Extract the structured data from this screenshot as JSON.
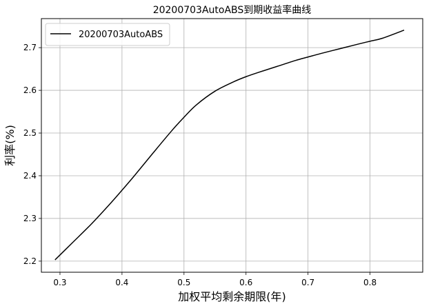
{
  "chart_data": {
    "type": "line",
    "title": "20200703AutoABS到期收益率曲线",
    "xlabel": "加权平均剩余期限(年)",
    "ylabel": "利率(%)",
    "xlim": [
      0.27,
      0.885
    ],
    "ylim": [
      2.174,
      2.768
    ],
    "xticks": [
      0.3,
      0.4,
      0.5,
      0.6,
      0.7,
      0.8
    ],
    "xtick_labels": [
      "0.3",
      "0.4",
      "0.5",
      "0.6",
      "0.7",
      "0.8"
    ],
    "yticks": [
      2.2,
      2.3,
      2.4,
      2.5,
      2.6,
      2.7
    ],
    "ytick_labels": [
      "2.2",
      "2.3",
      "2.4",
      "2.5",
      "2.6",
      "2.7"
    ],
    "grid": true,
    "legend_position": "top-left",
    "series": [
      {
        "name": "20200703AutoABS",
        "color": "#000000",
        "x": [
          0.292,
          0.32,
          0.35,
          0.38,
          0.4,
          0.42,
          0.45,
          0.48,
          0.5,
          0.52,
          0.55,
          0.58,
          0.6,
          0.62,
          0.65,
          0.68,
          0.7,
          0.72,
          0.75,
          0.78,
          0.8,
          0.82,
          0.855
        ],
        "y": [
          2.203,
          2.243,
          2.286,
          2.333,
          2.366,
          2.4,
          2.453,
          2.505,
          2.537,
          2.566,
          2.598,
          2.62,
          2.632,
          2.642,
          2.656,
          2.67,
          2.678,
          2.686,
          2.697,
          2.708,
          2.715,
          2.722,
          2.741
        ]
      }
    ]
  }
}
